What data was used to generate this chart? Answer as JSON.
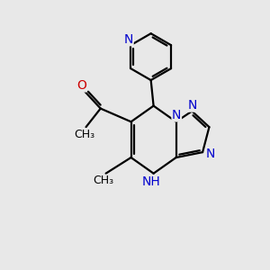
{
  "bg_color": "#e8e8e8",
  "bond_color": "#000000",
  "N_color": "#0000cd",
  "O_color": "#cc0000",
  "line_width": 1.6,
  "font_size": 10,
  "fig_size": [
    3.0,
    3.0
  ],
  "dpi": 100,
  "xlim": [
    0,
    10
  ],
  "ylim": [
    0,
    10
  ]
}
